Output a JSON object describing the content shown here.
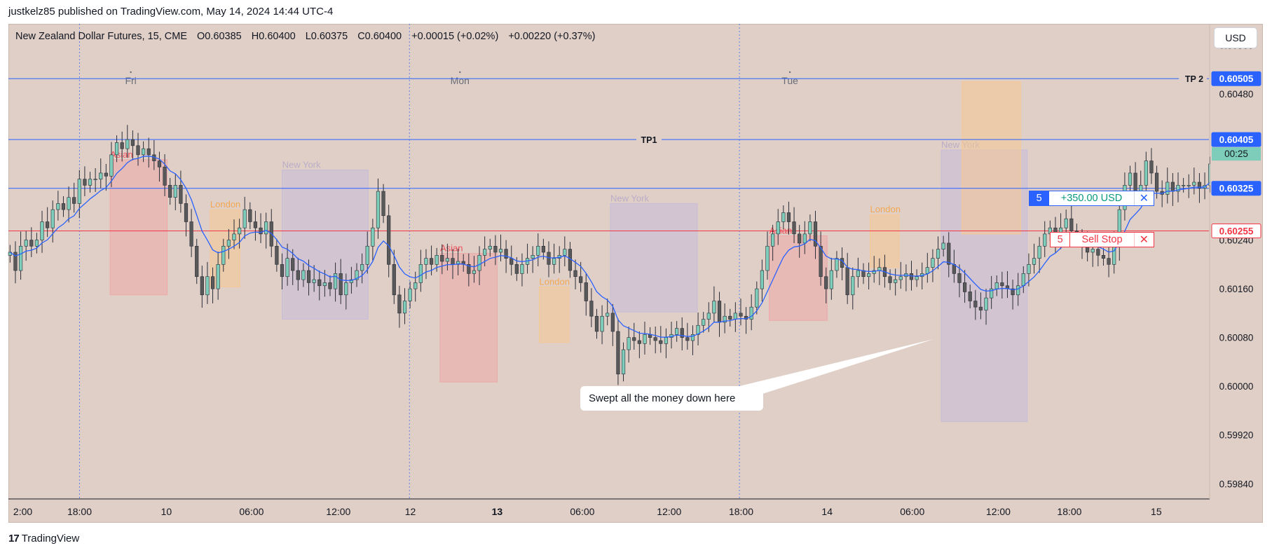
{
  "publisher": "justkelz85 published on TradingView.com, May 14, 2024 14:44 UTC-4",
  "currency_button": "USD",
  "legend": {
    "symbol": "New Zealand Dollar Futures, 15, CME",
    "open": "O0.60385",
    "high": "H0.60400",
    "low": "L0.60375",
    "close": "C0.60400",
    "change": "+0.00015 (+0.02%)",
    "change2": "+0.00220 (+0.37%)"
  },
  "annotation": "Swept all the money down here",
  "orders": {
    "position": {
      "qty": "5",
      "pnl": "+350.00 USD",
      "close_icon": "close-icon"
    },
    "sell_stop": {
      "qty": "5",
      "label": "Sell Stop",
      "close_icon": "close-icon"
    }
  },
  "footer": {
    "logo": "TradingView",
    "logo_mark": "17"
  },
  "colors": {
    "background": "#e0cfc6",
    "up_candle": "#7dcdba",
    "down_candle": "#595959",
    "ema": "#2962ff",
    "tp_line": "#2962ff",
    "position_line": "#2962ff",
    "stop_line": "#f23645",
    "asian_box": "#eca9a9",
    "london_box": "#f5c896",
    "newyork_box": "#c7bcd8",
    "countdown": "#7dcdba"
  },
  "chart_data": {
    "type": "candlestick",
    "symbol": "New Zealand Dollar Futures, 15, CME",
    "xlim": [
      0,
      1476
    ],
    "ylim": [
      0.59815,
      0.60595
    ],
    "x_ticks": [
      {
        "x": 3,
        "label": "2:00"
      },
      {
        "x": 86,
        "label": "18:00"
      },
      {
        "x": 191,
        "label": "10"
      },
      {
        "x": 294,
        "label": "06:00"
      },
      {
        "x": 399,
        "label": "12:00"
      },
      {
        "x": 486,
        "label": "12"
      },
      {
        "x": 591,
        "label": "13",
        "bold": true
      },
      {
        "x": 694,
        "label": "06:00"
      },
      {
        "x": 799,
        "label": "12:00"
      },
      {
        "x": 886,
        "label": "18:00"
      },
      {
        "x": 990,
        "label": "14"
      },
      {
        "x": 1093,
        "label": "06:00"
      },
      {
        "x": 1197,
        "label": "12:00"
      },
      {
        "x": 1283,
        "label": "18:00"
      },
      {
        "x": 1388,
        "label": "15"
      }
    ],
    "y_ticks": [
      "0.60560",
      "0.60480",
      "0.60240",
      "0.60160",
      "0.60080",
      "0.60000",
      "0.59920",
      "0.59840"
    ],
    "y_tick_values": [
      0.6056,
      0.6048,
      0.6024,
      0.6016,
      0.6008,
      0.6,
      0.5992,
      0.5984
    ],
    "day_markers": [
      {
        "x": 148,
        "label": "Fri"
      },
      {
        "x": 546,
        "label": "Mon"
      },
      {
        "x": 945,
        "label": "Tue"
      }
    ],
    "session_separators": [
      86,
      485,
      884
    ],
    "horizontal_lines": [
      {
        "name": "TP 2",
        "value": 0.60505,
        "label": "0.60505",
        "color": "#2962ff"
      },
      {
        "name": "TP1",
        "value": 0.60405,
        "label": "0.60405",
        "color": "#2962ff"
      },
      {
        "name": "position",
        "value": 0.60325,
        "label": "0.60325",
        "color": "#2962ff"
      },
      {
        "name": "sell-stop",
        "value": 0.60255,
        "label": "0.60255",
        "color": "#f23645"
      }
    ],
    "countdown": "00:25",
    "sessions": [
      {
        "label": "Asian",
        "x0": 123,
        "x1": 192,
        "high": 0.60372,
        "low": 0.6015,
        "kind": "asian"
      },
      {
        "label": "London",
        "x0": 244,
        "x1": 280,
        "high": 0.6029,
        "low": 0.60163,
        "kind": "london"
      },
      {
        "label": "New York",
        "x0": 331,
        "x1": 435,
        "high": 0.60355,
        "low": 0.6011,
        "kind": "newyork"
      },
      {
        "label": "Asian",
        "x0": 522,
        "x1": 591,
        "high": 0.60218,
        "low": 0.60007,
        "kind": "asian"
      },
      {
        "label": "London",
        "x0": 642,
        "x1": 678,
        "high": 0.60163,
        "low": 0.60072,
        "kind": "london"
      },
      {
        "label": "New York",
        "x0": 728,
        "x1": 833,
        "high": 0.603,
        "low": 0.60122,
        "kind": "newyork"
      },
      {
        "label": "Asian",
        "x0": 920,
        "x1": 990,
        "high": 0.60247,
        "low": 0.60108,
        "kind": "asian"
      },
      {
        "label": "London",
        "x0": 1042,
        "x1": 1077,
        "high": 0.60282,
        "low": 0.60195,
        "kind": "london"
      },
      {
        "label": "New York",
        "x0": 1128,
        "x1": 1232,
        "high": 0.60388,
        "low": 0.59942,
        "kind": "newyork"
      },
      {
        "label": "",
        "x0": 1153,
        "x1": 1224,
        "high": 0.605,
        "low": 0.6025,
        "kind": "london"
      }
    ],
    "closes": [
      0.6022,
      0.6019,
      0.6023,
      0.6024,
      0.6023,
      0.6024,
      0.6027,
      0.6026,
      0.6029,
      0.603,
      0.6029,
      0.6031,
      0.603,
      0.6034,
      0.6033,
      0.6034,
      0.6034,
      0.6035,
      0.60345,
      0.6038,
      0.604,
      0.6039,
      0.60405,
      0.60395,
      0.6038,
      0.6039,
      0.6038,
      0.6037,
      0.6036,
      0.6033,
      0.6031,
      0.6033,
      0.603,
      0.6027,
      0.6023,
      0.6018,
      0.6015,
      0.6018,
      0.6016,
      0.602,
      0.6023,
      0.6024,
      0.6025,
      0.6026,
      0.6029,
      0.6027,
      0.6026,
      0.6025,
      0.6027,
      0.6023,
      0.602,
      0.6018,
      0.6021,
      0.6019,
      0.60175,
      0.6019,
      0.6017,
      0.60175,
      0.60165,
      0.6017,
      0.6016,
      0.60185,
      0.6015,
      0.6017,
      0.60175,
      0.6019,
      0.602,
      0.6023,
      0.6026,
      0.6032,
      0.6028,
      0.602,
      0.6015,
      0.6012,
      0.6014,
      0.6016,
      0.6017,
      0.602,
      0.6021,
      0.602,
      0.60215,
      0.60205,
      0.6021,
      0.602,
      0.60205,
      0.602,
      0.60185,
      0.6019,
      0.60215,
      0.60225,
      0.6023,
      0.6022,
      0.60225,
      0.6021,
      0.602,
      0.60185,
      0.602,
      0.6021,
      0.60215,
      0.6023,
      0.6022,
      0.602,
      0.6021,
      0.60215,
      0.60225,
      0.6019,
      0.6018,
      0.6017,
      0.6014,
      0.60115,
      0.6009,
      0.60115,
      0.6012,
      0.6009,
      0.6002,
      0.6006,
      0.6008,
      0.60075,
      0.6007,
      0.60085,
      0.6008,
      0.60075,
      0.6007,
      0.6008,
      0.60085,
      0.60095,
      0.6008,
      0.60075,
      0.60085,
      0.601,
      0.6011,
      0.6012,
      0.6014,
      0.60105,
      0.60115,
      0.6011,
      0.6012,
      0.60115,
      0.6011,
      0.6013,
      0.6016,
      0.6019,
      0.6023,
      0.6025,
      0.6027,
      0.60285,
      0.6027,
      0.6025,
      0.60235,
      0.6025,
      0.6027,
      0.6023,
      0.6018,
      0.6016,
      0.6019,
      0.6021,
      0.60195,
      0.6015,
      0.6018,
      0.6019,
      0.6018,
      0.60185,
      0.6019,
      0.60195,
      0.6018,
      0.6017,
      0.60175,
      0.6018,
      0.60185,
      0.60175,
      0.6018,
      0.60185,
      0.60195,
      0.6021,
      0.60225,
      0.60235,
      0.602,
      0.60185,
      0.6017,
      0.60155,
      0.6014,
      0.6013,
      0.60125,
      0.60145,
      0.6016,
      0.6017,
      0.60165,
      0.6016,
      0.6015,
      0.60165,
      0.60185,
      0.602,
      0.6021,
      0.6023,
      0.6025,
      0.6026,
      0.6024,
      0.6026,
      0.60275,
      0.60255,
      0.6024,
      0.6023,
      0.6022,
      0.60225,
      0.60215,
      0.6021,
      0.602,
      0.6023,
      0.6029,
      0.6033,
      0.6035,
      0.6032,
      0.6033,
      0.6037,
      0.6035,
      0.6032,
      0.60315,
      0.60335,
      0.6032,
      0.6033,
      0.6033,
      0.6033,
      0.60335,
      0.60325,
      0.6033,
      0.60365,
      0.6039,
      0.604
    ],
    "ema_period": 9
  }
}
